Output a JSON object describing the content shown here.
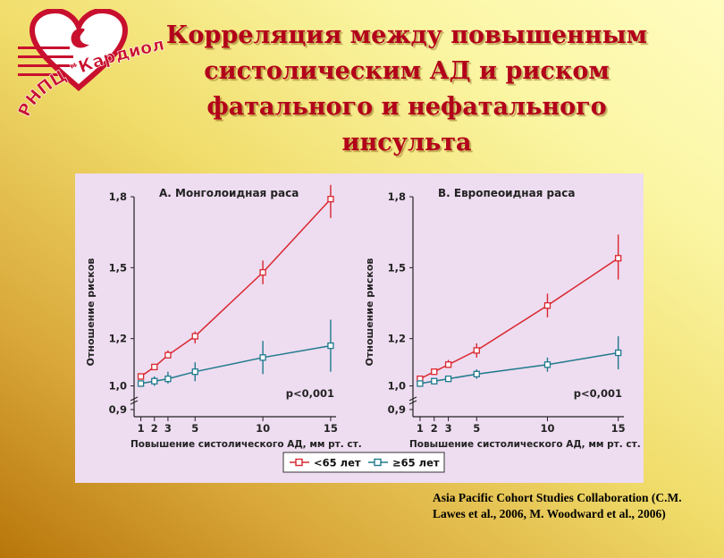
{
  "slide": {
    "title": "Корреляция между повышенным систолическим АД и риском фатального и нефатального инсульта",
    "logo_text": "РНПЦ \"Кардиология\"",
    "citation": "Asia Pacific Cohort Studies Collaboration (C.M. Lawes et al., 2006, M. Woodward et al., 2006)"
  },
  "colors": {
    "under65": "#d9262e",
    "over65": "#1f7a8c",
    "logo_red": "#c8102e",
    "title_red": "#b3001a"
  },
  "legend": {
    "under65_label": "<65 лет",
    "over65_label": "≥65 лет"
  },
  "chart_data": [
    {
      "type": "line",
      "title": "А. Монголоидная раса",
      "xlabel": "Повышение систолического АД, мм рт. ст.",
      "ylabel": "Отношение рисков",
      "x": [
        1,
        2,
        3,
        5,
        10,
        15
      ],
      "x_ticks": [
        1,
        2,
        3,
        5,
        10,
        15
      ],
      "y_ticks": [
        "0,9",
        "1,0",
        "1,2",
        "1,5",
        "1,8"
      ],
      "y_tick_values": [
        0.9,
        1.0,
        1.2,
        1.5,
        1.8
      ],
      "ylim": [
        0.9,
        1.8
      ],
      "annotation": "p<0,001",
      "series": [
        {
          "name": "<65 лет",
          "values": [
            1.04,
            1.08,
            1.13,
            1.21,
            1.48,
            1.79
          ],
          "ci": [
            [
              1.03,
              1.05
            ],
            [
              1.07,
              1.09
            ],
            [
              1.12,
              1.15
            ],
            [
              1.18,
              1.23
            ],
            [
              1.43,
              1.53
            ],
            [
              1.71,
              1.85
            ]
          ]
        },
        {
          "name": "≥65 лет",
          "values": [
            1.01,
            1.02,
            1.03,
            1.06,
            1.12,
            1.17
          ],
          "ci": [
            [
              1.0,
              1.02
            ],
            [
              1.0,
              1.04
            ],
            [
              1.01,
              1.06
            ],
            [
              1.02,
              1.1
            ],
            [
              1.05,
              1.19
            ],
            [
              1.06,
              1.28
            ]
          ]
        }
      ]
    },
    {
      "type": "line",
      "title": "В. Европеоидная раса",
      "xlabel": "Повышение систолического АД, мм рт. ст.",
      "ylabel": "Отношение рисков",
      "x": [
        1,
        2,
        3,
        5,
        10,
        15
      ],
      "x_ticks": [
        1,
        2,
        3,
        5,
        10,
        15
      ],
      "y_ticks": [
        "0,9",
        "1,0",
        "1,2",
        "1,5",
        "1,8"
      ],
      "y_tick_values": [
        0.9,
        1.0,
        1.2,
        1.5,
        1.8
      ],
      "ylim": [
        0.9,
        1.8
      ],
      "annotation": "p<0,001",
      "series": [
        {
          "name": "<65 лет",
          "values": [
            1.03,
            1.06,
            1.09,
            1.15,
            1.34,
            1.54
          ],
          "ci": [
            [
              1.02,
              1.04
            ],
            [
              1.05,
              1.07
            ],
            [
              1.08,
              1.11
            ],
            [
              1.12,
              1.18
            ],
            [
              1.29,
              1.39
            ],
            [
              1.45,
              1.64
            ]
          ]
        },
        {
          "name": "≥65 лет",
          "values": [
            1.01,
            1.02,
            1.03,
            1.05,
            1.09,
            1.14
          ],
          "ci": [
            [
              1.0,
              1.02
            ],
            [
              1.01,
              1.03
            ],
            [
              1.02,
              1.04
            ],
            [
              1.03,
              1.07
            ],
            [
              1.06,
              1.12
            ],
            [
              1.07,
              1.21
            ]
          ]
        }
      ]
    }
  ]
}
